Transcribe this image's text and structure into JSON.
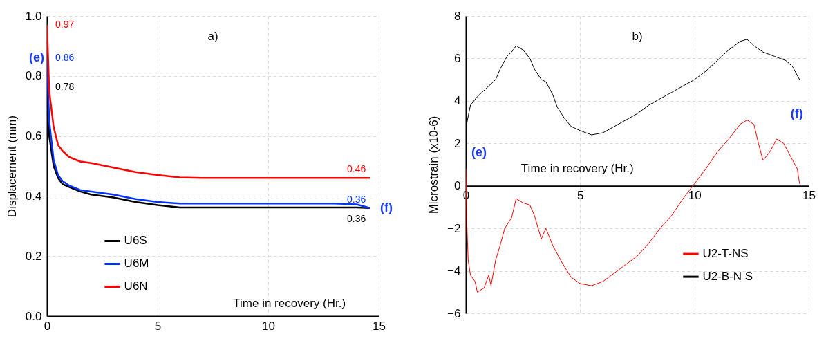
{
  "chart_data": [
    {
      "type": "line",
      "xlabel": "Time in recovery (Hr.)",
      "ylabel": "Displacement (mm)",
      "xlim": [
        0,
        15
      ],
      "ylim": [
        0,
        1
      ],
      "xticks": [
        0,
        5,
        10,
        15
      ],
      "yticks": [
        {
          "value": 0,
          "label": "0.0"
        },
        0.2,
        0.4,
        0.6,
        0.8,
        {
          "value": 1,
          "label": "1.0"
        }
      ],
      "grid": true,
      "legend": "bottom left",
      "annotations": [
        "a)",
        "(e)",
        "(f)"
      ],
      "series": [
        {
          "name": "U6S",
          "color": "#000000",
          "x": [
            0,
            0.1,
            0.3,
            0.5,
            0.7,
            1,
            1.5,
            2,
            3,
            4,
            5,
            6,
            7,
            8,
            9,
            10,
            11,
            12,
            13,
            14,
            14.6
          ],
          "values": [
            0.78,
            0.6,
            0.5,
            0.46,
            0.44,
            0.43,
            0.415,
            0.405,
            0.395,
            0.38,
            0.37,
            0.362,
            0.362,
            0.362,
            0.362,
            0.362,
            0.362,
            0.362,
            0.362,
            0.362,
            0.36
          ],
          "value_labels": [
            "0.78",
            null,
            null,
            null,
            null,
            null,
            null,
            null,
            null,
            null,
            null,
            null,
            null,
            null,
            null,
            null,
            null,
            null,
            null,
            null,
            "0.36"
          ]
        },
        {
          "name": "U6M",
          "color": "#0033ff",
          "x": [
            0,
            0.1,
            0.3,
            0.5,
            0.7,
            1,
            1.5,
            2,
            3,
            4,
            5,
            6,
            7,
            8,
            9,
            10,
            11,
            12,
            13,
            14,
            14.6
          ],
          "values": [
            0.86,
            0.65,
            0.52,
            0.47,
            0.45,
            0.435,
            0.42,
            0.415,
            0.405,
            0.39,
            0.38,
            0.375,
            0.375,
            0.375,
            0.375,
            0.375,
            0.375,
            0.375,
            0.375,
            0.372,
            0.36
          ],
          "value_labels": [
            "0.86",
            null,
            null,
            null,
            null,
            null,
            null,
            null,
            null,
            null,
            null,
            null,
            null,
            null,
            null,
            null,
            null,
            null,
            null,
            null,
            "0.36"
          ]
        },
        {
          "name": "U6N",
          "color": "#ff0000",
          "x": [
            0,
            0.1,
            0.3,
            0.5,
            0.7,
            1,
            1.5,
            2,
            3,
            4,
            5,
            6,
            7,
            8,
            9,
            10,
            11,
            12,
            13,
            14,
            14.6
          ],
          "values": [
            0.97,
            0.75,
            0.63,
            0.57,
            0.55,
            0.53,
            0.515,
            0.51,
            0.495,
            0.48,
            0.47,
            0.462,
            0.46,
            0.46,
            0.46,
            0.46,
            0.46,
            0.46,
            0.46,
            0.46,
            0.46
          ],
          "value_labels": [
            "0.97",
            null,
            null,
            null,
            null,
            null,
            null,
            null,
            null,
            null,
            null,
            null,
            null,
            null,
            null,
            null,
            null,
            null,
            null,
            null,
            "0.46"
          ]
        }
      ]
    },
    {
      "type": "line",
      "xlabel": "Time in recovery (Hr.)",
      "ylabel": "Microstrain (x10-6)",
      "xlim": [
        0,
        15
      ],
      "ylim": [
        -6,
        8
      ],
      "xticks": [
        0,
        5,
        10,
        15
      ],
      "yticks": [
        -6,
        -4,
        -2,
        0,
        2,
        4,
        6,
        8
      ],
      "grid": true,
      "legend": "bottom right",
      "annotations": [
        "b)",
        "(e)",
        "(f)"
      ],
      "series": [
        {
          "name": "U2-T-NS",
          "color": "#ff0000",
          "x": [
            0,
            0.05,
            0.1,
            0.2,
            0.4,
            0.5,
            0.8,
            1,
            1.1,
            1.3,
            1.5,
            1.7,
            2,
            2.2,
            2.5,
            2.8,
            3,
            3.3,
            3.5,
            3.8,
            4.2,
            4.6,
            5,
            5.5,
            6,
            6.5,
            7,
            7.5,
            8,
            8.5,
            9,
            9.5,
            10,
            10.5,
            11,
            11.5,
            12,
            12.3,
            12.6,
            12.8,
            13,
            13.3,
            13.6,
            13.9,
            14.2,
            14.5,
            14.6
          ],
          "values": [
            0.8,
            -2,
            -3.5,
            -4.2,
            -4.5,
            -5,
            -4.8,
            -4.2,
            -4.7,
            -3.5,
            -2.8,
            -2,
            -1.5,
            -0.6,
            -0.8,
            -0.9,
            -1.4,
            -2.5,
            -2,
            -2.8,
            -3.6,
            -4.3,
            -4.6,
            -4.7,
            -4.5,
            -4.1,
            -3.7,
            -3.3,
            -2.7,
            -2,
            -1.4,
            -0.6,
            0.1,
            0.8,
            1.6,
            2.2,
            2.9,
            3.1,
            2.9,
            2,
            1.2,
            1.6,
            2.2,
            2,
            1.4,
            0.8,
            0.1
          ]
        },
        {
          "name": "U2-B-N S",
          "color": "#000000",
          "x": [
            0,
            0.05,
            0.2,
            0.5,
            1,
            1.3,
            1.5,
            1.8,
            2,
            2.2,
            2.5,
            2.8,
            3,
            3.3,
            3.5,
            3.8,
            4,
            4.3,
            4.6,
            5,
            5.5,
            6,
            6.5,
            7,
            7.5,
            8,
            8.5,
            9,
            9.5,
            10,
            10.5,
            11,
            11.5,
            12,
            12.3,
            12.6,
            13,
            13.5,
            14,
            14.3,
            14.6
          ],
          "values": [
            2.2,
            3,
            3.8,
            4.2,
            4.7,
            5,
            5.5,
            6.1,
            6.3,
            6.6,
            6.4,
            6,
            5.5,
            5,
            4.9,
            4.3,
            3.7,
            3.2,
            2.8,
            2.6,
            2.4,
            2.5,
            2.8,
            3.1,
            3.4,
            3.8,
            4.1,
            4.4,
            4.7,
            5,
            5.4,
            5.9,
            6.4,
            6.8,
            6.9,
            6.6,
            6.3,
            6.1,
            5.9,
            5.6,
            5
          ]
        }
      ]
    }
  ]
}
